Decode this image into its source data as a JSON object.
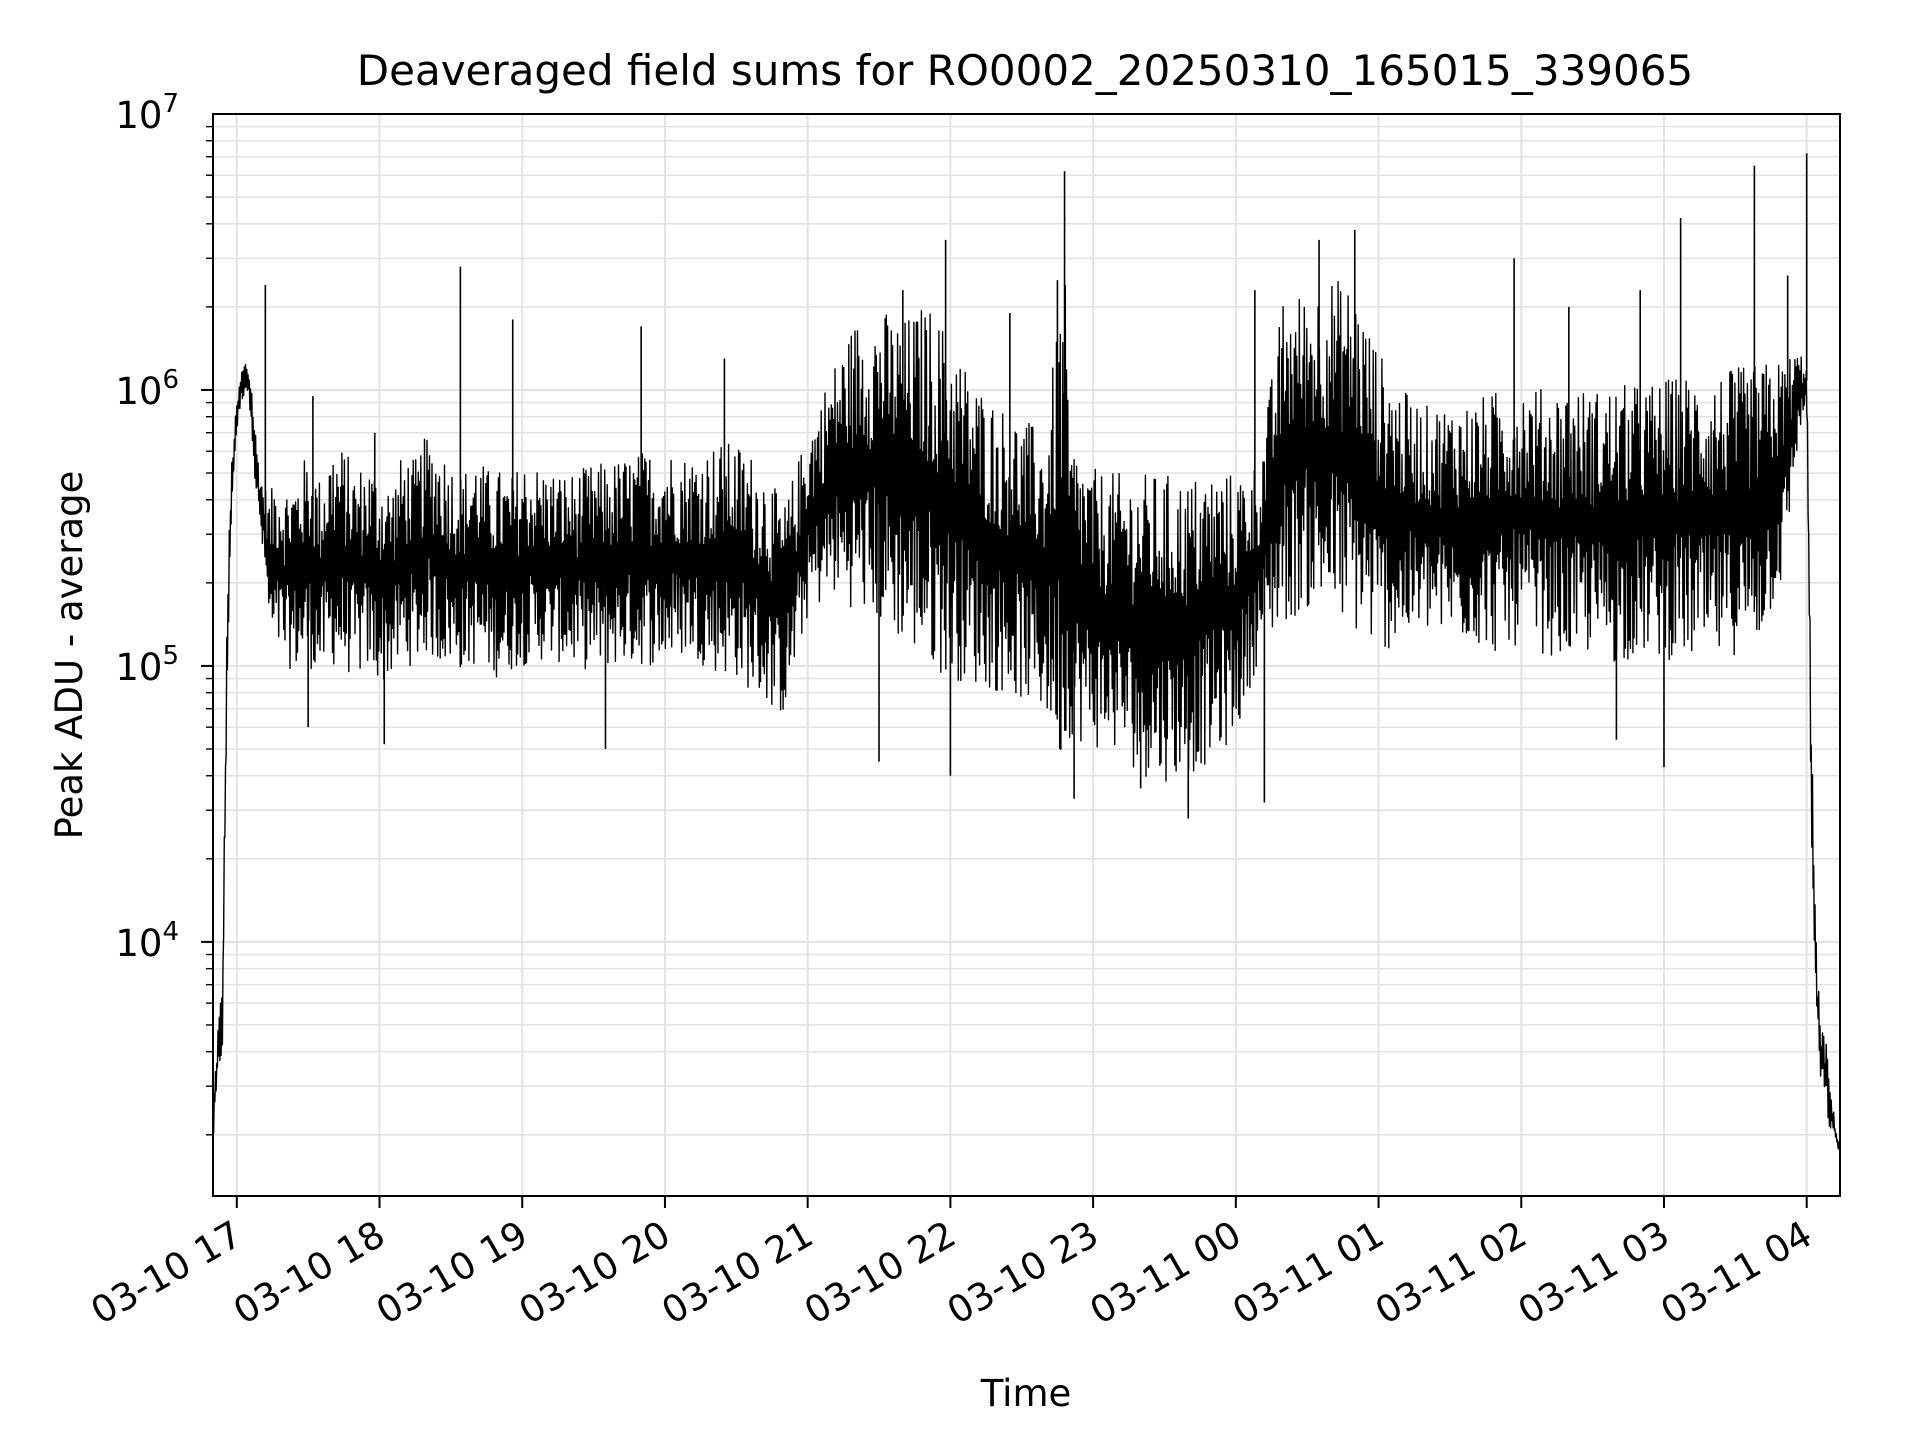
{
  "chart_data": {
    "type": "line",
    "title": "Deaveraged field sums for RO0002_20250310_165015_339065",
    "xlabel": "Time",
    "ylabel": "Peak ADU - average",
    "yscale": "log",
    "ylim": [
      1200,
      10000000
    ],
    "xlim": [
      "2025-03-10 16:50",
      "2025-03-11 04:14"
    ],
    "grid": "major and minor, light gray",
    "legend": "none",
    "line_color": "#000000",
    "x_ticks": [
      {
        "label": "03-10 17",
        "time": "2025-03-10 17:00"
      },
      {
        "label": "03-10 18",
        "time": "2025-03-10 18:00"
      },
      {
        "label": "03-10 19",
        "time": "2025-03-10 19:00"
      },
      {
        "label": "03-10 20",
        "time": "2025-03-10 20:00"
      },
      {
        "label": "03-10 21",
        "time": "2025-03-10 21:00"
      },
      {
        "label": "03-10 22",
        "time": "2025-03-10 22:00"
      },
      {
        "label": "03-10 23",
        "time": "2025-03-10 23:00"
      },
      {
        "label": "03-11 00",
        "time": "2025-03-11 00:00"
      },
      {
        "label": "03-11 01",
        "time": "2025-03-11 01:00"
      },
      {
        "label": "03-11 02",
        "time": "2025-03-11 02:00"
      },
      {
        "label": "03-11 03",
        "time": "2025-03-11 03:00"
      },
      {
        "label": "03-11 04",
        "time": "2025-03-11 04:00"
      }
    ],
    "y_ticks": [
      {
        "base": "10",
        "exp": "4",
        "value": 10000
      },
      {
        "base": "10",
        "exp": "5",
        "value": 100000
      },
      {
        "base": "10",
        "exp": "6",
        "value": 1000000
      },
      {
        "base": "10",
        "exp": "7",
        "value": 10000000
      }
    ],
    "series": [
      {
        "x": [
          "2025-03-10 16:50",
          "2025-03-10 16:52",
          "2025-03-10 16:54",
          "2025-03-10 16:56",
          "2025-03-10 16:58",
          "2025-03-10 17:00",
          "2025-03-10 17:02",
          "2025-03-10 17:04",
          "2025-03-10 17:06",
          "2025-03-10 17:08",
          "2025-03-10 17:10",
          "2025-03-10 17:12",
          "2025-03-10 17:14",
          "2025-03-10 17:16",
          "2025-03-10 17:18",
          "2025-03-10 17:20",
          "2025-03-10 17:25",
          "2025-03-10 17:30",
          "2025-03-10 17:35",
          "2025-03-10 17:40",
          "2025-03-10 17:45",
          "2025-03-10 17:50",
          "2025-03-10 17:55",
          "2025-03-10 18:00",
          "2025-03-10 18:05",
          "2025-03-10 18:10",
          "2025-03-10 18:15",
          "2025-03-10 18:20",
          "2025-03-10 18:25",
          "2025-03-10 18:30",
          "2025-03-10 18:35",
          "2025-03-10 18:40",
          "2025-03-10 18:45",
          "2025-03-10 18:50",
          "2025-03-10 18:55",
          "2025-03-10 19:00",
          "2025-03-10 19:10",
          "2025-03-10 19:20",
          "2025-03-10 19:30",
          "2025-03-10 19:40",
          "2025-03-10 19:50",
          "2025-03-10 20:00",
          "2025-03-10 20:10",
          "2025-03-10 20:20",
          "2025-03-10 20:30",
          "2025-03-10 20:40",
          "2025-03-10 20:50",
          "2025-03-10 21:00",
          "2025-03-10 21:10",
          "2025-03-10 21:20",
          "2025-03-10 21:30",
          "2025-03-10 21:40",
          "2025-03-10 21:50",
          "2025-03-10 22:00",
          "2025-03-10 22:10",
          "2025-03-10 22:20",
          "2025-03-10 22:30",
          "2025-03-10 22:40",
          "2025-03-10 22:48",
          "2025-03-10 22:50",
          "2025-03-10 23:00",
          "2025-03-10 23:10",
          "2025-03-10 23:20",
          "2025-03-10 23:30",
          "2025-03-10 23:40",
          "2025-03-10 23:50",
          "2025-03-11 00:00",
          "2025-03-11 00:10",
          "2025-03-11 00:20",
          "2025-03-11 00:30",
          "2025-03-11 00:40",
          "2025-03-11 00:50",
          "2025-03-11 01:00",
          "2025-03-11 01:10",
          "2025-03-11 01:20",
          "2025-03-11 01:30",
          "2025-03-11 01:40",
          "2025-03-11 01:50",
          "2025-03-11 02:00",
          "2025-03-11 02:10",
          "2025-03-11 02:20",
          "2025-03-11 02:30",
          "2025-03-11 02:40",
          "2025-03-11 02:50",
          "2025-03-11 03:00",
          "2025-03-11 03:10",
          "2025-03-11 03:20",
          "2025-03-11 03:30",
          "2025-03-11 03:40",
          "2025-03-11 03:50",
          "2025-03-11 03:56",
          "2025-03-11 04:00",
          "2025-03-11 04:02",
          "2025-03-11 04:04",
          "2025-03-11 04:06",
          "2025-03-11 04:08",
          "2025-03-11 04:10",
          "2025-03-11 04:12",
          "2025-03-11 04:14"
        ],
        "upper": [
          2500,
          5000,
          7500,
          200000,
          600000,
          900000,
          1200000,
          1300000,
          1100000,
          700000,
          500000,
          450000,
          400000,
          520000,
          500000,
          450000,
          500000,
          600000,
          480000,
          650000,
          620000,
          520000,
          560000,
          520000,
          460000,
          600000,
          560000,
          700000,
          650000,
          560000,
          500000,
          600000,
          520000,
          520000,
          480000,
          560000,
          520000,
          500000,
          540000,
          560000,
          600000,
          620000,
          580000,
          640000,
          650000,
          560000,
          380000,
          720000,
          1200000,
          1800000,
          2000000,
          1800000,
          2100000,
          1600000,
          1100000,
          900000,
          800000,
          700000,
          3000000,
          700000,
          520000,
          500000,
          500000,
          500000,
          480000,
          520000,
          500000,
          560000,
          2200000,
          2300000,
          2600000,
          2400000,
          1400000,
          1000000,
          880000,
          900000,
          920000,
          1000000,
          1100000,
          1000000,
          1050000,
          1000000,
          1050000,
          1050000,
          1100000,
          1150000,
          1150000,
          1200000,
          1250000,
          1300000,
          1400000,
          1300000,
          60000,
          10000,
          5000,
          4500,
          3000,
          2200,
          1800
        ],
        "lower": [
          1800,
          3000,
          4000,
          80000,
          400000,
          700000,
          900000,
          1000000,
          800000,
          400000,
          300000,
          200000,
          120000,
          100000,
          110000,
          100000,
          95000,
          100000,
          90000,
          100000,
          95000,
          90000,
          95000,
          85000,
          90000,
          100000,
          100000,
          110000,
          100000,
          100000,
          95000,
          100000,
          95000,
          90000,
          95000,
          100000,
          105000,
          100000,
          95000,
          100000,
          100000,
          100000,
          110000,
          95000,
          90000,
          75000,
          65000,
          150000,
          180000,
          160000,
          140000,
          120000,
          100000,
          90000,
          85000,
          80000,
          75000,
          65000,
          40000,
          55000,
          50000,
          48000,
          40000,
          38000,
          40000,
          45000,
          55000,
          110000,
          140000,
          160000,
          150000,
          130000,
          110000,
          120000,
          130000,
          125000,
          120000,
          110000,
          120000,
          110000,
          105000,
          110000,
          100000,
          110000,
          105000,
          105000,
          100000,
          110000,
          120000,
          200000,
          600000,
          900000,
          20000,
          5000,
          3000,
          2500,
          2000,
          1900,
          1700
        ]
      }
    ],
    "spikes": [
      {
        "time": "2025-03-10 17:12",
        "value": 2400000
      },
      {
        "time": "2025-03-10 17:32",
        "value": 950000
      },
      {
        "time": "2025-03-10 17:58",
        "value": 700000
      },
      {
        "time": "2025-03-10 18:34",
        "value": 2800000
      },
      {
        "time": "2025-03-10 18:56",
        "value": 1800000
      },
      {
        "time": "2025-03-10 19:50",
        "value": 1700000
      },
      {
        "time": "2025-03-10 20:25",
        "value": 1300000
      },
      {
        "time": "2025-03-10 21:40",
        "value": 2300000
      },
      {
        "time": "2025-03-10 21:58",
        "value": 3500000
      },
      {
        "time": "2025-03-10 22:25",
        "value": 1900000
      },
      {
        "time": "2025-03-10 22:45",
        "value": 2500000
      },
      {
        "time": "2025-03-10 22:48",
        "value": 6200000
      },
      {
        "time": "2025-03-11 00:08",
        "value": 2300000
      },
      {
        "time": "2025-03-11 00:35",
        "value": 3500000
      },
      {
        "time": "2025-03-11 00:50",
        "value": 3800000
      },
      {
        "time": "2025-03-11 01:57",
        "value": 3000000
      },
      {
        "time": "2025-03-11 02:20",
        "value": 2000000
      },
      {
        "time": "2025-03-11 02:50",
        "value": 2300000
      },
      {
        "time": "2025-03-11 03:07",
        "value": 4200000
      },
      {
        "time": "2025-03-11 03:38",
        "value": 6500000
      },
      {
        "time": "2025-03-11 03:52",
        "value": 2600000
      },
      {
        "time": "2025-03-11 04:00",
        "value": 7200000
      }
    ],
    "dips": [
      {
        "time": "2025-03-10 17:30",
        "value": 60000
      },
      {
        "time": "2025-03-10 18:02",
        "value": 52000
      },
      {
        "time": "2025-03-10 19:35",
        "value": 50000
      },
      {
        "time": "2025-03-10 21:30",
        "value": 45000
      },
      {
        "time": "2025-03-10 22:00",
        "value": 40000
      },
      {
        "time": "2025-03-10 22:52",
        "value": 33000
      },
      {
        "time": "2025-03-10 23:20",
        "value": 36000
      },
      {
        "time": "2025-03-10 23:40",
        "value": 28000
      },
      {
        "time": "2025-03-11 00:12",
        "value": 32000
      },
      {
        "time": "2025-03-11 02:40",
        "value": 54000
      },
      {
        "time": "2025-03-11 03:00",
        "value": 43000
      }
    ]
  }
}
